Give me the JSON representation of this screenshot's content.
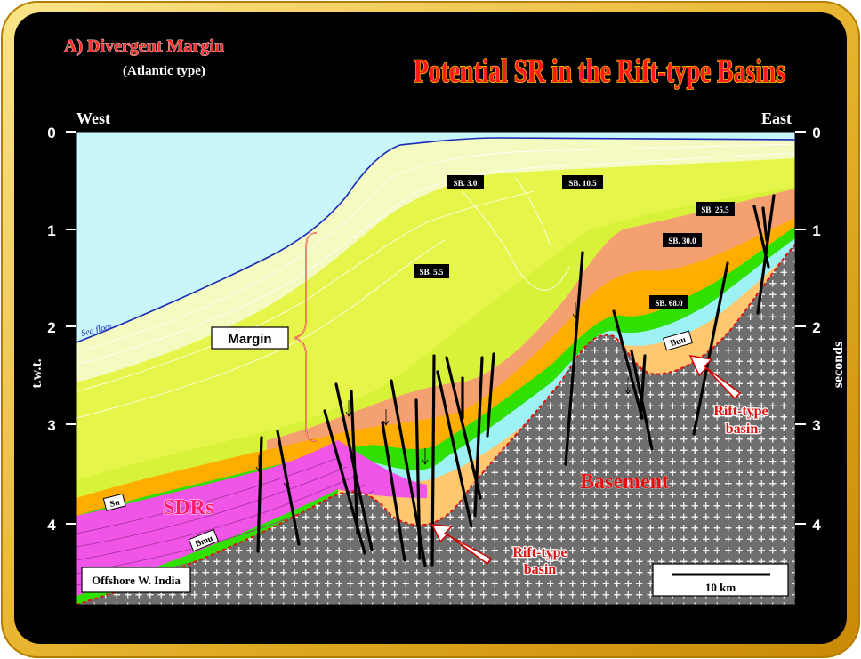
{
  "heading": {
    "main": "A) Divergent Margin",
    "sub": "(Atlantic type)",
    "banner": "Potential SR in the Rift-type Basins"
  },
  "directions": {
    "west": "West",
    "east": "East"
  },
  "axes": {
    "left_label": "t.w.t.",
    "right_label": "seconds",
    "ticks": [
      "0",
      "1",
      "2",
      "3",
      "4"
    ]
  },
  "labels": {
    "sea_floor": "Sea floor",
    "margin": "Margin",
    "sdrs": "SDRs",
    "su": "Su",
    "bmu": "Bmu",
    "buu": "Buu",
    "basement": "Basement",
    "rift_basin_1_line1": "Rift-type",
    "rift_basin_1_line2": "basin",
    "rift_basin_2_line1": "Rift-type",
    "rift_basin_2_line2": "basin.",
    "location": "Offshore W. India",
    "scale": "10 km"
  },
  "sequence_boundaries": [
    "SB. 3.0",
    "SB. 10.5",
    "SB. 5.5",
    "SB. 25.5",
    "SB. 30.0",
    "SB. 68.0"
  ],
  "colors": {
    "frame_outer": "#f6d36a",
    "frame_inner": "#d49a10",
    "panel_bg": "#000000",
    "sea": "#c8f6fb",
    "basement": "#6e6e6e",
    "sdr": "#f055e8",
    "green": "#2fe000",
    "orange": "#ffad00",
    "salmon": "#f5a070",
    "light_orange": "#ffc870",
    "yellow": "#e6f54a",
    "pale_yellow": "#f4fac0",
    "title_red": "#ff1a1a",
    "fault": "#000000"
  }
}
